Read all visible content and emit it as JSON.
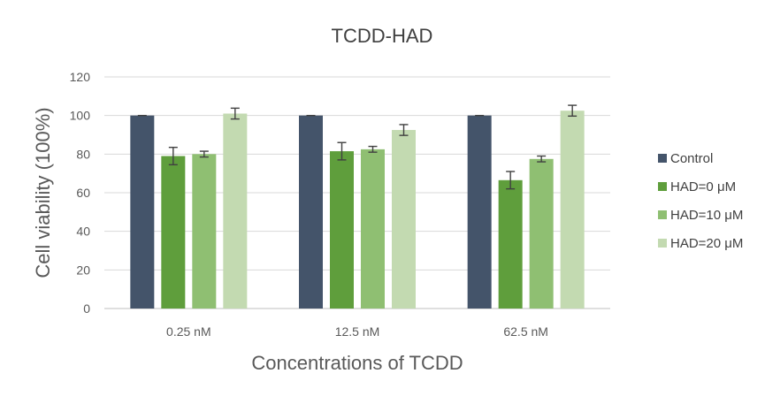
{
  "chart_data": {
    "type": "bar",
    "title": "TCDD-HAD",
    "xlabel": "Concentrations of TCDD",
    "ylabel": "Cell viability (100%)",
    "categories": [
      "0.25 nM",
      "12.5 nM",
      "62.5 nM"
    ],
    "ylim": [
      0,
      120
    ],
    "yticks": [
      0,
      20,
      40,
      60,
      80,
      100,
      120
    ],
    "grid": true,
    "legend_position": "right",
    "series": [
      {
        "name": "Control",
        "values": [
          100,
          100,
          100
        ],
        "errors": [
          0,
          0,
          0
        ],
        "color": "#44546a"
      },
      {
        "name": "HAD=0 μM",
        "values": [
          79,
          81.5,
          66.5
        ],
        "errors": [
          4.5,
          4.5,
          4.5
        ],
        "color": "#5f9e3c"
      },
      {
        "name": "HAD=10 μM",
        "values": [
          80,
          82.5,
          77.5
        ],
        "errors": [
          1.5,
          1.5,
          1.5
        ],
        "color": "#8fbf72"
      },
      {
        "name": "HAD=20 μM",
        "values": [
          101,
          92.5,
          102.5
        ],
        "errors": [
          2.8,
          2.8,
          2.8
        ],
        "color": "#c3dab1"
      }
    ]
  }
}
